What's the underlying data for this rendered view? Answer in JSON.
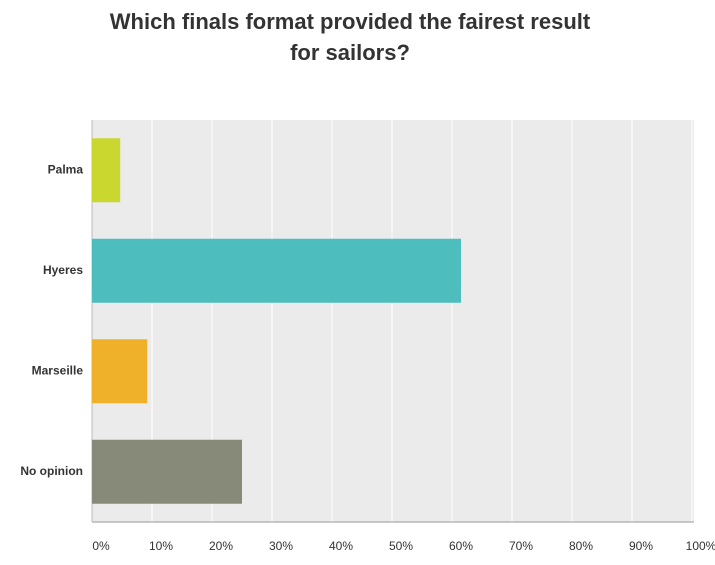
{
  "chart_data": {
    "type": "hbar",
    "title": "Which finals format provided the fairest result for sailors?",
    "categories": [
      "Palma",
      "Hyeres",
      "Marseille",
      "No opinion"
    ],
    "values": [
      4.7,
      61.5,
      9.2,
      25
    ],
    "colors": [
      "#c9d72f",
      "#4dbdbe",
      "#f0b12a",
      "#878a79"
    ],
    "xlim": [
      0,
      100
    ],
    "xticks": [
      {
        "value": 0,
        "label": "0%"
      },
      {
        "value": 10,
        "label": "10%"
      },
      {
        "value": 20,
        "label": "20%"
      },
      {
        "value": 30,
        "label": "30%"
      },
      {
        "value": 40,
        "label": "40%"
      },
      {
        "value": 50,
        "label": "50%"
      },
      {
        "value": 60,
        "label": "60%"
      },
      {
        "value": 70,
        "label": "70%"
      },
      {
        "value": 80,
        "label": "80%"
      },
      {
        "value": 90,
        "label": "90%"
      },
      {
        "value": 100,
        "label": "100%"
      }
    ],
    "grid": true
  }
}
